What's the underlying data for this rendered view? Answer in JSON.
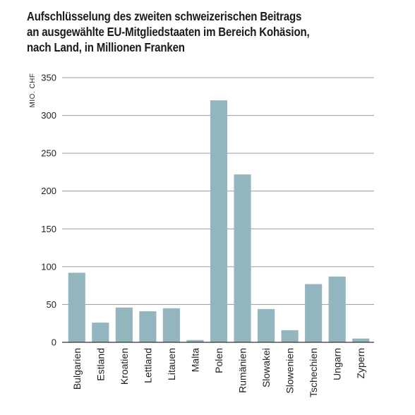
{
  "chart_data": {
    "type": "bar",
    "title_lines": [
      "Aufschlüsselung des zweiten schweizerischen Beitrags",
      "an ausgewählte EU-Mitgliedstaaten im Bereich Kohäsion,",
      "nach Land, in Millionen Franken"
    ],
    "ylabel": "MIO. CHF",
    "xlabel": "",
    "ylim": [
      0,
      350
    ],
    "yticks": [
      0,
      50,
      100,
      150,
      200,
      250,
      300,
      350
    ],
    "grid": true,
    "categories": [
      "Bulgarien",
      "Estland",
      "Kroatien",
      "Lettland",
      "Litauen",
      "Malta",
      "Polen",
      "Rumänien",
      "Slowakei",
      "Slowenien",
      "Tschechien",
      "Ungarn",
      "Zypern"
    ],
    "values": [
      92,
      26,
      46,
      41,
      45,
      3,
      320,
      222,
      44,
      16,
      77,
      87,
      5
    ],
    "bar_color": "#93b5be",
    "grid_color": "#9a9a9a",
    "axis_color": "#333333"
  }
}
